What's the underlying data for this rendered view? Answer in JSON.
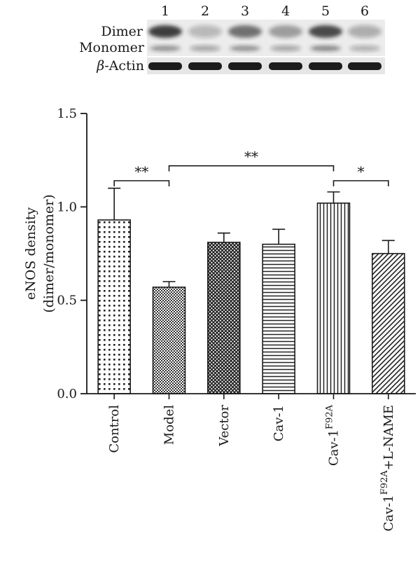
{
  "blot": {
    "lanes": [
      "1",
      "2",
      "3",
      "4",
      "5",
      "6"
    ],
    "row_labels": {
      "dimer": "Dimer",
      "monomer": "Monomer",
      "actin_greek": "β",
      "actin_rest": "-Actin"
    },
    "dimer_intensity": [
      0.85,
      0.25,
      0.6,
      0.4,
      0.8,
      0.3
    ],
    "monomer_intensity": [
      0.45,
      0.35,
      0.45,
      0.35,
      0.5,
      0.3
    ],
    "actin_intensity": [
      0.95,
      0.95,
      0.95,
      0.95,
      0.95,
      0.95
    ]
  },
  "chart_data": {
    "type": "bar",
    "ylabel_line1": "eNOS density",
    "ylabel_line2": "(dimer/monomer)",
    "xlabel": "",
    "ylim": [
      0.0,
      1.5
    ],
    "yticks": [
      "0.0",
      "0.5",
      "1.0",
      "1.5"
    ],
    "categories": [
      {
        "text": "Control",
        "sup": "",
        "tail": ""
      },
      {
        "text": "Model",
        "sup": "",
        "tail": ""
      },
      {
        "text": "Vector",
        "sup": "",
        "tail": ""
      },
      {
        "text": "Cav-1",
        "sup": "",
        "tail": ""
      },
      {
        "text": "Cav-1",
        "sup": "F92A",
        "tail": ""
      },
      {
        "text": "Cav-1",
        "sup": "F92A",
        "tail": "+L-NAME"
      }
    ],
    "values": [
      0.93,
      0.57,
      0.81,
      0.8,
      1.02,
      0.75
    ],
    "errors": [
      0.17,
      0.03,
      0.05,
      0.08,
      0.06,
      0.07
    ],
    "patterns": [
      "dots",
      "checker",
      "crosshatch",
      "horizontal",
      "vertical",
      "diagonal"
    ],
    "significance": [
      {
        "from": 0,
        "to": 1,
        "label": "**",
        "level": 1.14
      },
      {
        "from": 1,
        "to": 4,
        "label": "**",
        "level": 1.22
      },
      {
        "from": 4,
        "to": 5,
        "label": "*",
        "level": 1.14
      }
    ],
    "grid": false,
    "legend": "none"
  }
}
